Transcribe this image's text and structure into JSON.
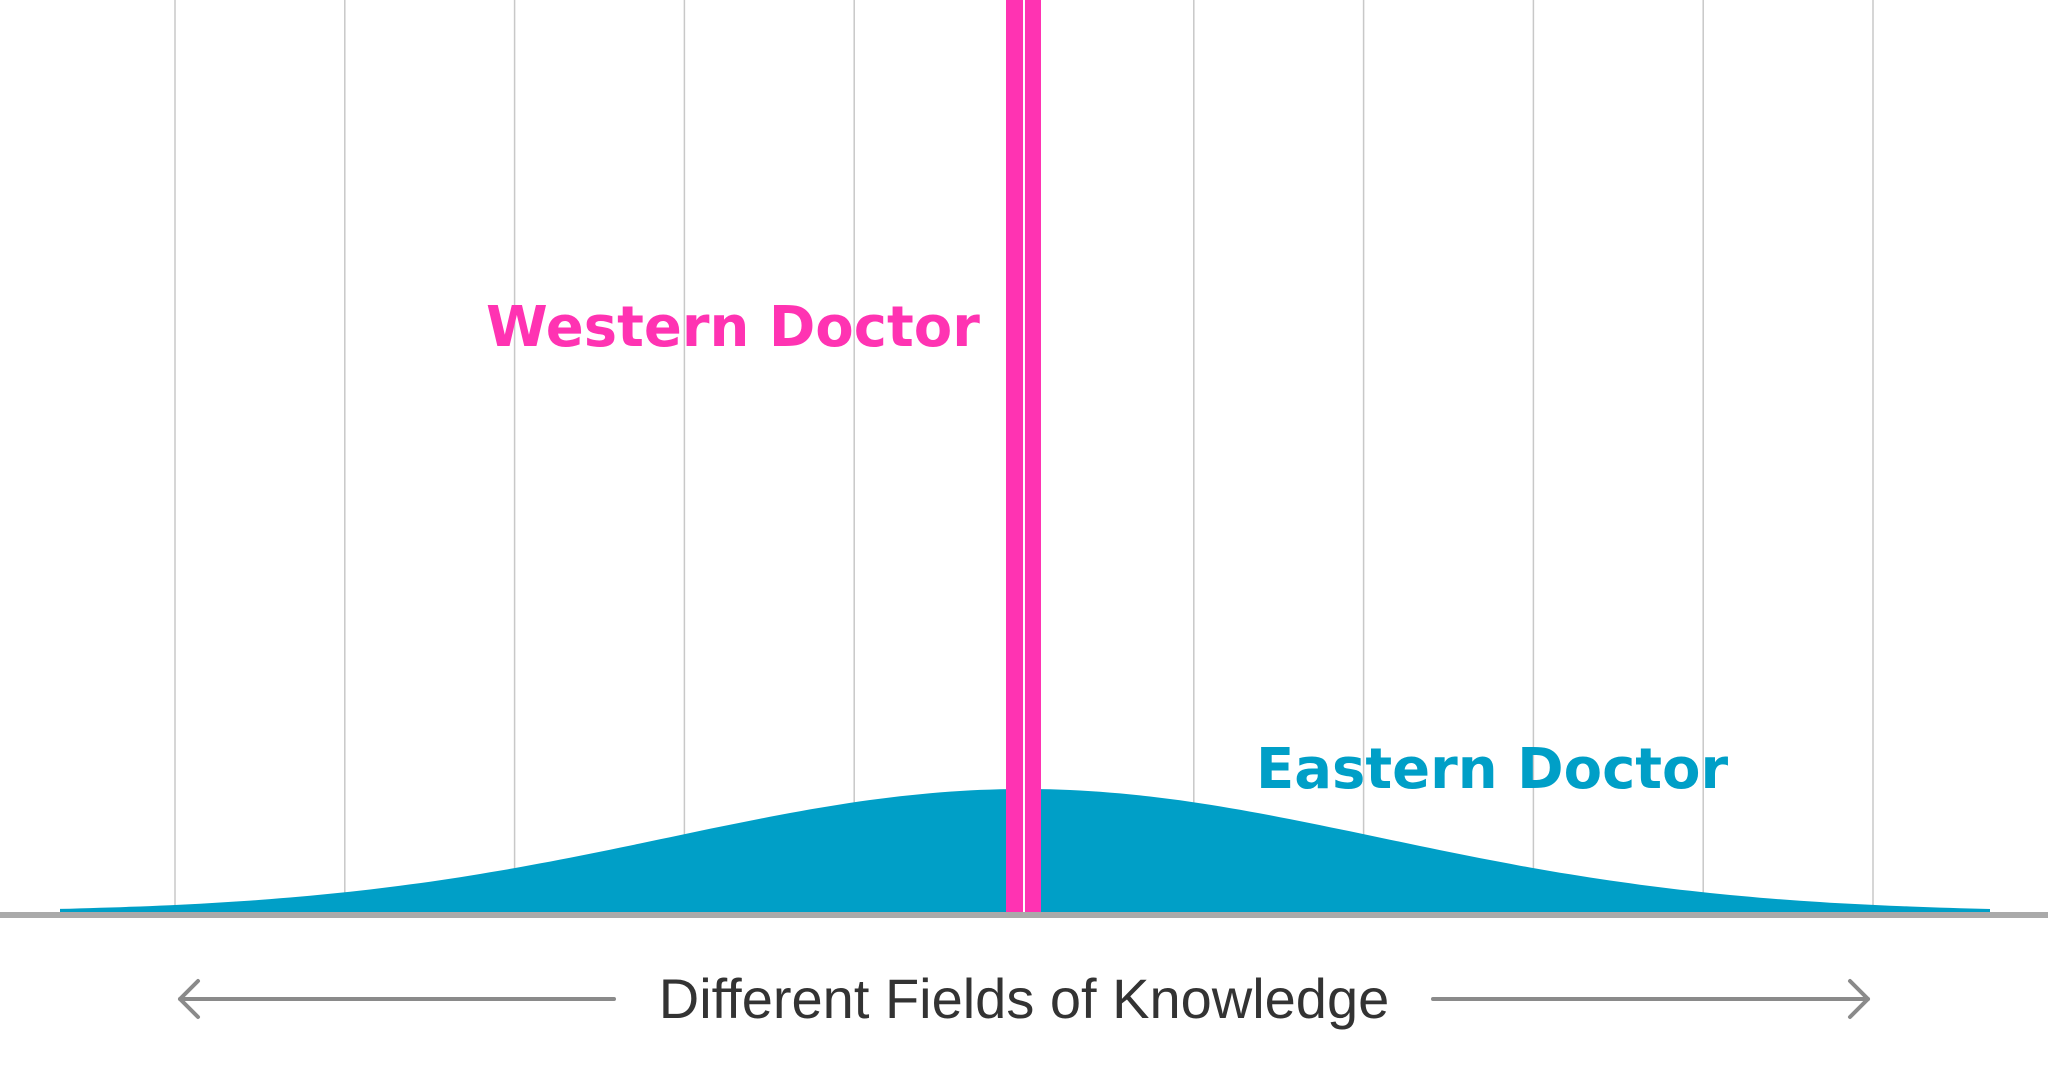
{
  "labels": {
    "western": "Western Doctor",
    "eastern": "Eastern Doctor",
    "axis": "Different Fields of Knowledge"
  }
}
